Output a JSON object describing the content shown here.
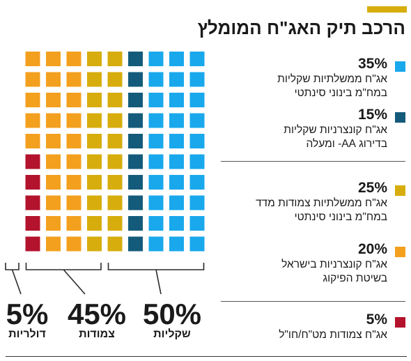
{
  "title": "הרכב תיק האג\"ח המומלץ",
  "colors": {
    "accent": "#d6ad0c",
    "light_blue": "#19a8ec",
    "dark_teal": "#145b7b",
    "mustard": "#d6ad0c",
    "orange": "#f3a01f",
    "red": "#b3132d"
  },
  "chart_data": {
    "type": "waffle",
    "title": "הרכב תיק האג\"ח המומלץ",
    "grid": {
      "rows": 10,
      "cols": 10
    },
    "series": [
      {
        "pct_label": "35%",
        "value": 35,
        "description": [
          "אג\"ח ממשלתיות שקליות",
          "במח\"מ בינוני סינתטי"
        ],
        "color": "#19a8ec"
      },
      {
        "pct_label": "15%",
        "value": 15,
        "description": [
          "אג\"ח קונצרניות שקליות",
          "בדירוג AA- ומעלה"
        ],
        "color": "#145b7b"
      },
      {
        "pct_label": "25%",
        "value": 25,
        "description": [
          "אג\"ח ממשלתיות צמודות מדד",
          "במח\"מ בינוני סינתטי"
        ],
        "color": "#d6ad0c"
      },
      {
        "pct_label": "20%",
        "value": 20,
        "description": [
          "אג\"ח קונצרניות בישראל",
          "בשיטת הפיקוג"
        ],
        "color": "#f3a01f"
      },
      {
        "pct_label": "5%",
        "value": 5,
        "description": [
          "אג\"ח צמודות מט\"ח/חו\"ל"
        ],
        "color": "#b3132d"
      }
    ],
    "groups": [
      {
        "pct_label": "50%",
        "value": 50,
        "name": "שקליות"
      },
      {
        "pct_label": "45%",
        "value": 45,
        "name": "צמודות"
      },
      {
        "pct_label": "5%",
        "value": 5,
        "name": "דולריות"
      }
    ]
  }
}
